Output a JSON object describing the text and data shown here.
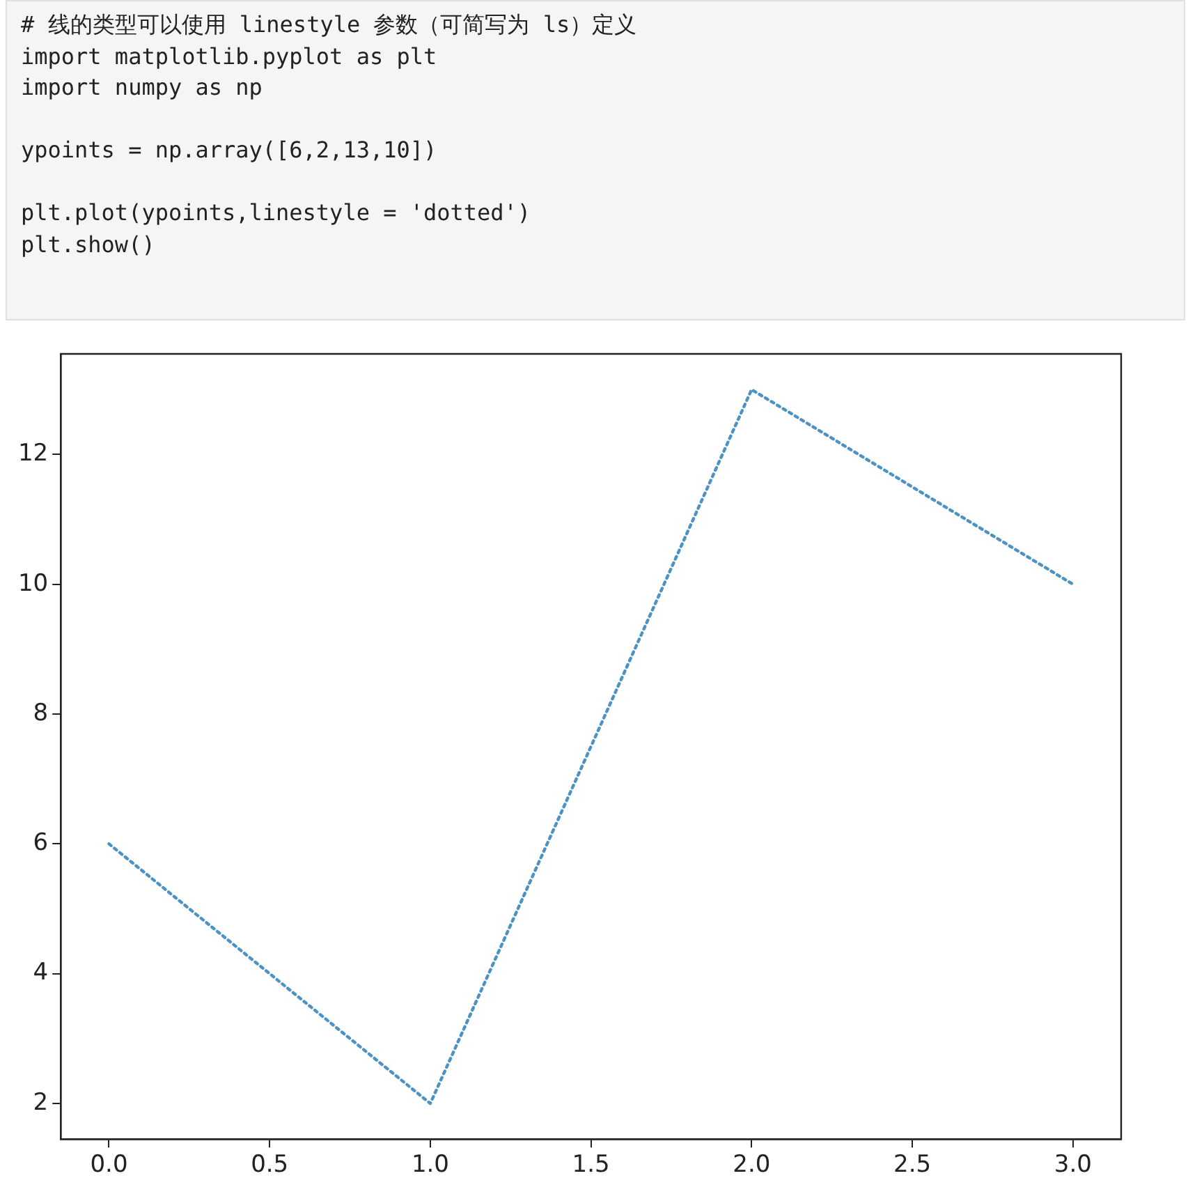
{
  "chart_data": {
    "type": "line",
    "annotations": [
      "# 线的类型可以使用 linestyle 参数（可简写为 ls）定义\nimport matplotlib.pyplot as plt\nimport numpy as np\n\nypoints = np.array([6,2,13,10])\n\nplt.plot(ypoints,linestyle = 'dotted')\nplt.show()"
    ],
    "x": [
      0,
      1,
      2,
      3
    ],
    "series": [
      {
        "color": "#1f77b4",
        "values": [
          6,
          2,
          13,
          10
        ]
      }
    ],
    "xlim": [
      -0.15,
      3.15
    ],
    "xticks": [
      {
        "value": 0,
        "label": "0.0"
      },
      0.5,
      {
        "value": 1,
        "label": "1.0"
      },
      1.5,
      {
        "value": 2,
        "label": "2.0"
      },
      2.5,
      {
        "value": 3,
        "label": "3.0"
      }
    ],
    "ylim": [
      1.45,
      13.55
    ],
    "yticks": [
      2,
      4,
      6,
      8,
      10,
      12
    ],
    "grid": false,
    "legend": false,
    "marker": "none",
    "line_style": "dotted"
  }
}
